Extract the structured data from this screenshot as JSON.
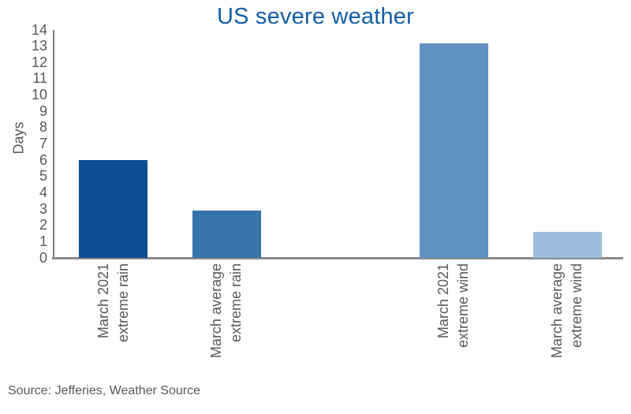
{
  "chart_data": {
    "type": "bar",
    "title": "US severe weather",
    "title_color": "#135fa7",
    "ylabel": "Days",
    "xlabel": "",
    "ylim": [
      0,
      14
    ],
    "ytick_step": 1,
    "grid": false,
    "legend": false,
    "categories": [
      [
        "March 2021",
        "extreme rain"
      ],
      [
        "March average",
        "extreme rain"
      ],
      [
        "March 2021",
        "extreme wind"
      ],
      [
        "March average",
        "extreme wind"
      ]
    ],
    "values": [
      6.0,
      2.9,
      13.2,
      1.6
    ],
    "bar_colors": [
      "#0d4e91",
      "#3874ac",
      "#6192c0",
      "#9ebddb"
    ],
    "bar_center_frac": [
      0.1046,
      0.304,
      0.7029,
      0.9023
    ],
    "bar_width_frac": 0.1205
  },
  "source_note": "Source: Jefferies, Weather Source",
  "colors": {
    "text": "#595959",
    "axis": "#8a8a8a",
    "title": "#135fa7"
  }
}
